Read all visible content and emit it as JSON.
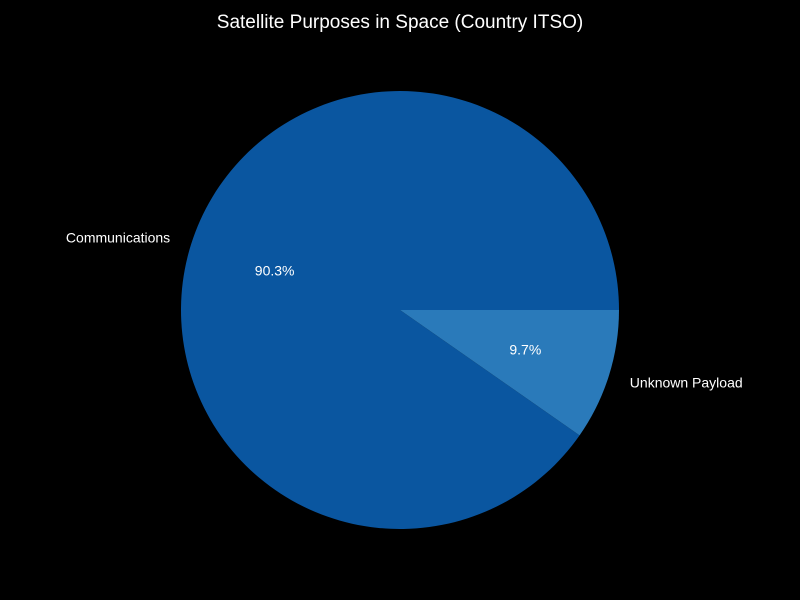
{
  "chart_data": {
    "type": "pie",
    "title": "Satellite Purposes in Space (Country ITSO)",
    "categories": [
      "Communications",
      "Unknown Payload"
    ],
    "values": [
      90.3,
      9.7
    ],
    "value_labels": [
      "90.3%",
      "9.7%"
    ],
    "colors": [
      "#0a56a0",
      "#2a7aba"
    ],
    "background": "#000000",
    "text_color": "#ffffff",
    "start_angle_deg": 0,
    "direction": "counterclockwise",
    "legend": "none"
  }
}
